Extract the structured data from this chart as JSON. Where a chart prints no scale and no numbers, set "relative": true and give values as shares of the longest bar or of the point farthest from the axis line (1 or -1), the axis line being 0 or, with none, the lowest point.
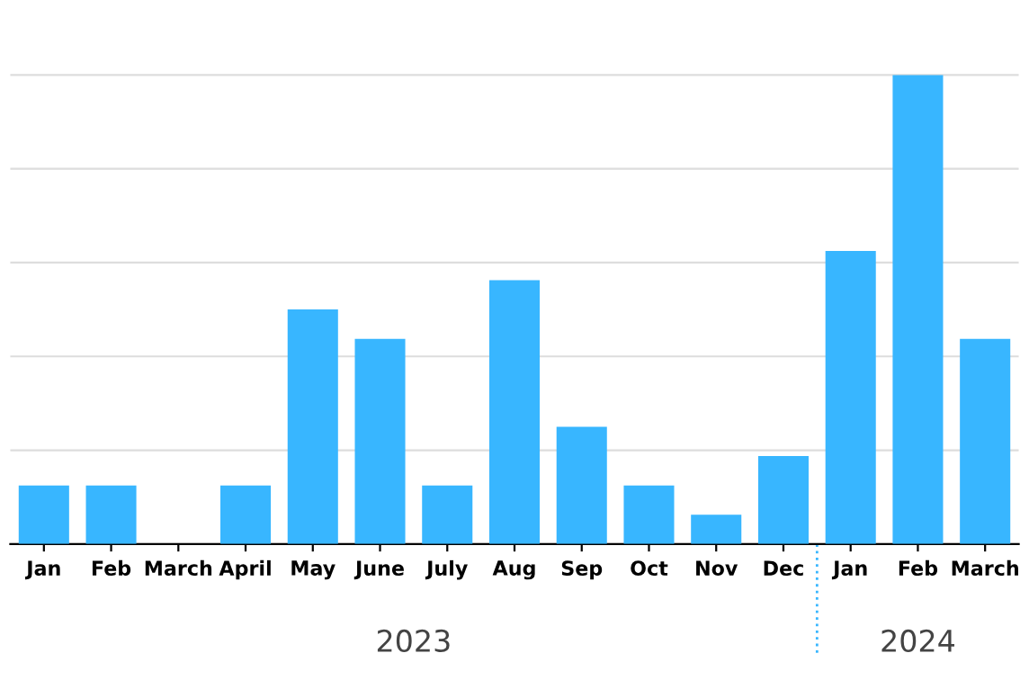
{
  "chart_data": {
    "type": "bar",
    "relative": true,
    "categories": [
      "Jan",
      "Feb",
      "March",
      "April",
      "May",
      "June",
      "July",
      "Aug",
      "Sep",
      "Oct",
      "Nov",
      "Dec",
      "Jan",
      "Feb",
      "March"
    ],
    "values": [
      0.125,
      0.125,
      0,
      0.125,
      0.5,
      0.4375,
      0.125,
      0.5625,
      0.25,
      0.125,
      0.0625,
      0.1875,
      0.625,
      1,
      0.4375
    ],
    "color": "#38b6ff",
    "grid": "y",
    "annotations": [
      "2023",
      "2024"
    ]
  }
}
